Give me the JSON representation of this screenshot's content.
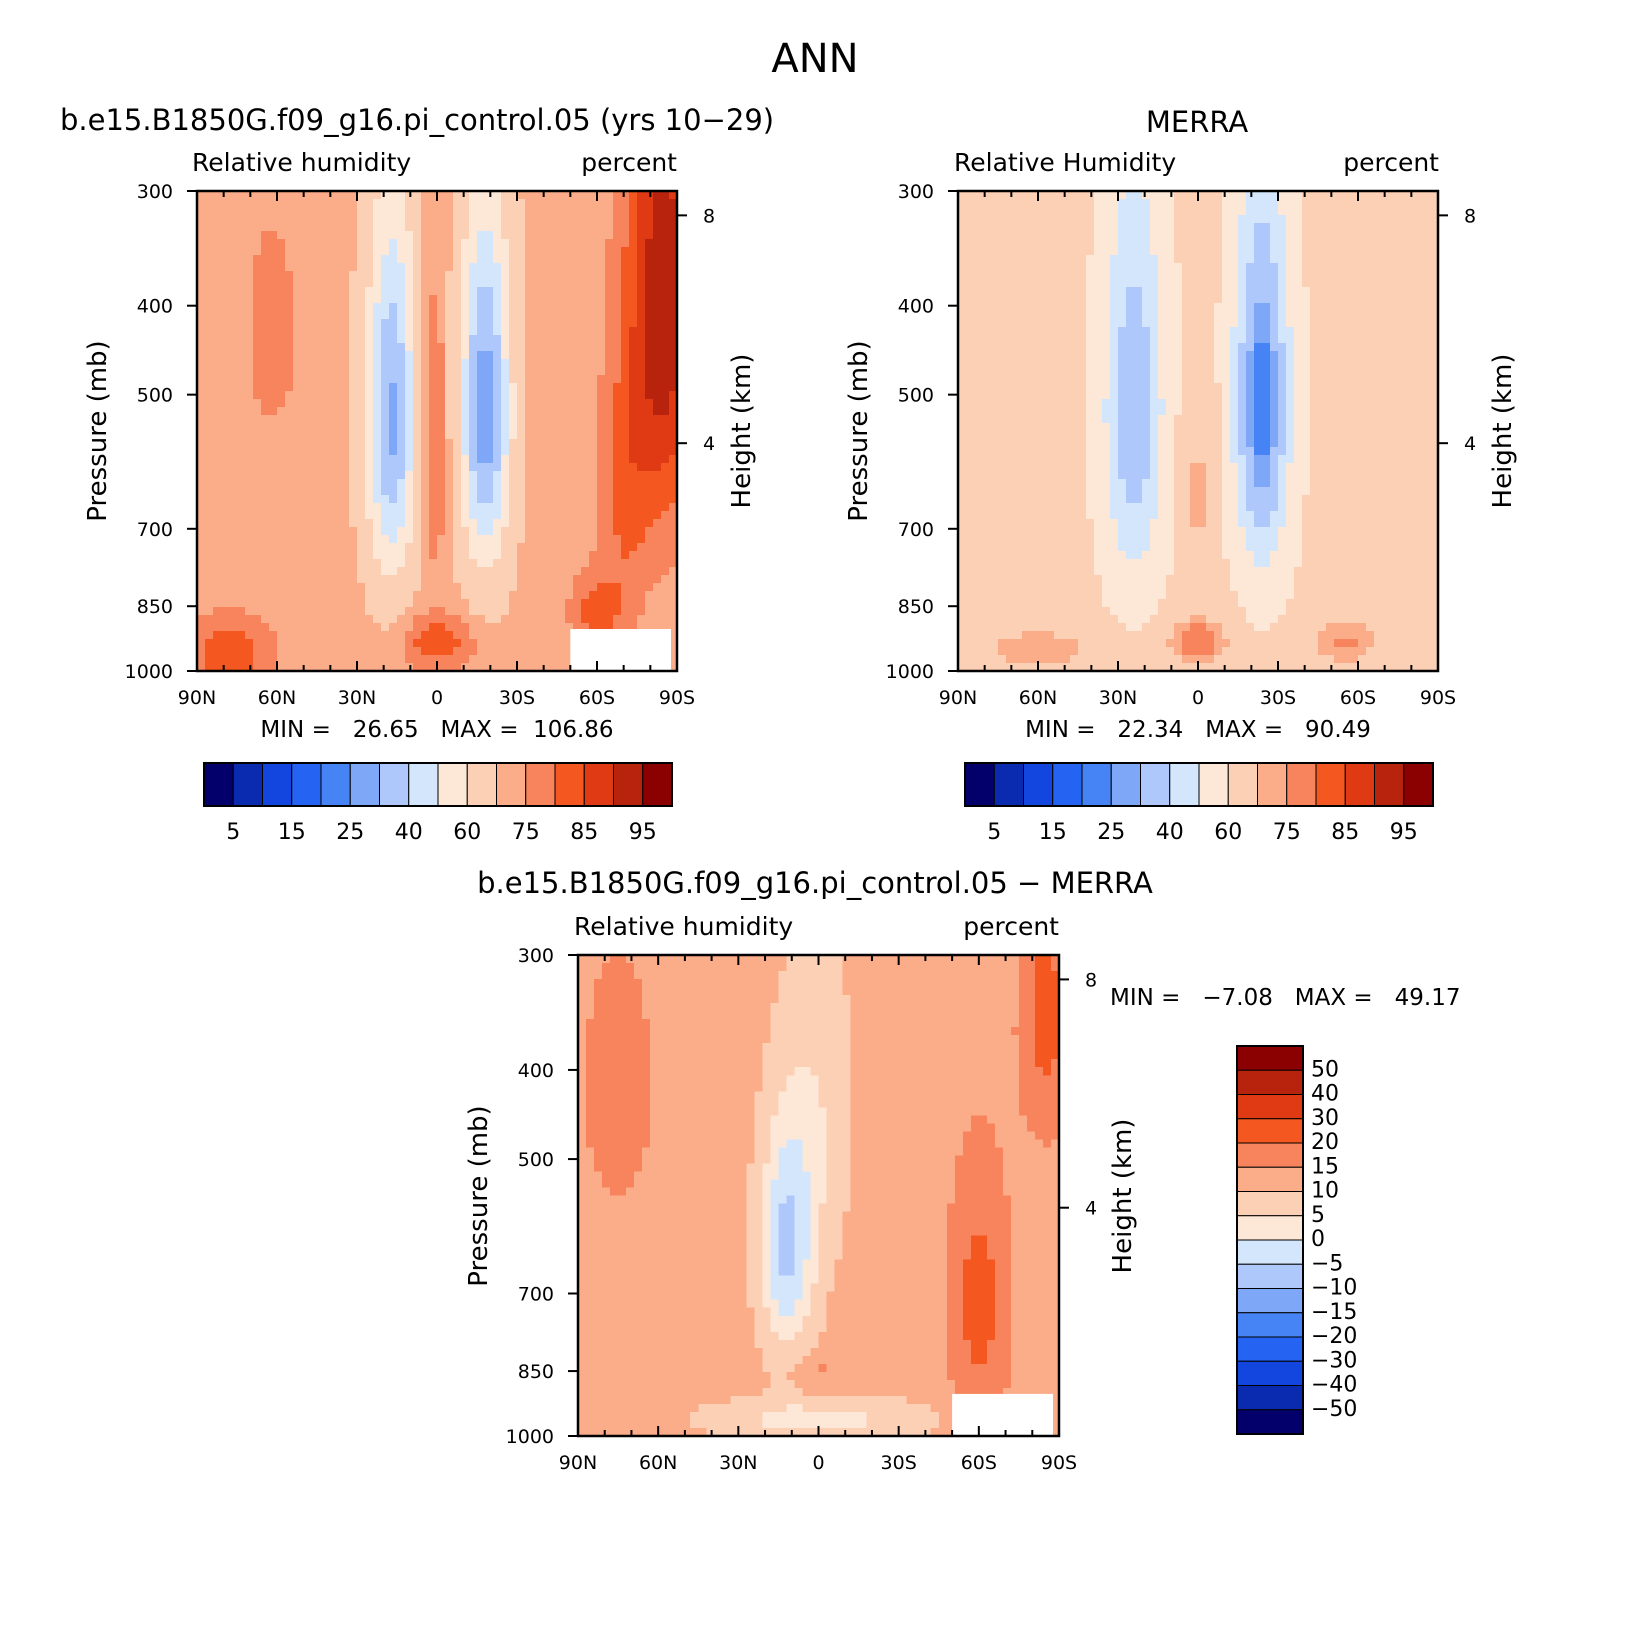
{
  "figure": {
    "title": "ANN"
  },
  "colors": {
    "rh_palette": [
      "#03006c",
      "#0a2bb0",
      "#1346de",
      "#2563f2",
      "#4684f5",
      "#7ea7f7",
      "#afc8fb",
      "#d4e6fb",
      "#fde8d7",
      "#fcd0b4",
      "#fbac88",
      "#f7845c",
      "#f4571f",
      "#df3a14",
      "#b8230d",
      "#8b0000"
    ],
    "diff_palette": [
      "#03006c",
      "#0a2bb0",
      "#1346de",
      "#2563f2",
      "#4684f5",
      "#7ea7f7",
      "#afc8fb",
      "#d4e6fb",
      "#fde8d7",
      "#fcd0b4",
      "#fbac88",
      "#f7845c",
      "#f4571f",
      "#df3a14",
      "#b8230d",
      "#8b0000"
    ]
  },
  "chart_data": [
    {
      "type": "heatmap",
      "id": "model",
      "title": "b.e15.B1850G.f09_g16.pi_control.05 (yrs 10−29)",
      "left_label": "Relative humidity",
      "right_label": "percent",
      "ylabel": "Pressure (mb)",
      "ylabel_right": "Height (km)",
      "x_ticks": [
        "90N",
        "60N",
        "30N",
        "0",
        "30S",
        "60S",
        "90S"
      ],
      "y_ticks": [
        "300",
        "400",
        "500",
        "700",
        "850",
        "1000"
      ],
      "y_ticks_right": [
        "8",
        "4"
      ],
      "stats_text": "MIN =   26.65   MAX =  106.86",
      "min": 26.65,
      "max": 106.86,
      "xlim": [
        90,
        -90
      ],
      "ylim": [
        1000,
        300
      ],
      "ylog": true,
      "colorbar": {
        "orientation": "horizontal",
        "levels": [
          5,
          10,
          15,
          20,
          25,
          30,
          40,
          50,
          60,
          70,
          75,
          80,
          85,
          90,
          95
        ],
        "labels": [
          "5",
          "15",
          "25",
          "40",
          "60",
          "75",
          "85",
          "95"
        ]
      }
    },
    {
      "type": "heatmap",
      "id": "obs",
      "title": "MERRA",
      "left_label": "Relative Humidity",
      "right_label": "percent",
      "ylabel": "Pressure (mb)",
      "ylabel_right": "Height (km)",
      "x_ticks": [
        "90N",
        "60N",
        "30N",
        "0",
        "30S",
        "60S",
        "90S"
      ],
      "y_ticks": [
        "300",
        "400",
        "500",
        "700",
        "850",
        "1000"
      ],
      "y_ticks_right": [
        "8",
        "4"
      ],
      "stats_text": "MIN =   22.34   MAX =   90.49",
      "min": 22.34,
      "max": 90.49,
      "xlim": [
        90,
        -90
      ],
      "ylim": [
        1000,
        300
      ],
      "ylog": true,
      "colorbar": {
        "orientation": "horizontal",
        "levels": [
          5,
          10,
          15,
          20,
          25,
          30,
          40,
          50,
          60,
          70,
          75,
          80,
          85,
          90,
          95
        ],
        "labels": [
          "5",
          "15",
          "25",
          "40",
          "60",
          "75",
          "85",
          "95"
        ]
      }
    },
    {
      "type": "heatmap",
      "id": "diff",
      "title": "b.e15.B1850G.f09_g16.pi_control.05 − MERRA",
      "left_label": "Relative humidity",
      "right_label": "percent",
      "ylabel": "Pressure (mb)",
      "ylabel_right": "Height (km)",
      "x_ticks": [
        "90N",
        "60N",
        "30N",
        "0",
        "30S",
        "60S",
        "90S"
      ],
      "y_ticks": [
        "300",
        "400",
        "500",
        "700",
        "850",
        "1000"
      ],
      "y_ticks_right": [
        "8",
        "4"
      ],
      "stats_text": "MIN =   −7.08   MAX =   49.17",
      "min": -7.08,
      "max": 49.17,
      "xlim": [
        90,
        -90
      ],
      "ylim": [
        1000,
        300
      ],
      "ylog": true,
      "colorbar": {
        "orientation": "vertical",
        "levels": [
          -50,
          -40,
          -30,
          -20,
          -15,
          -10,
          -5,
          0,
          5,
          10,
          15,
          20,
          30,
          40,
          50
        ],
        "labels": [
          "50",
          "40",
          "30",
          "20",
          "15",
          "10",
          "5",
          "0",
          "−5",
          "−10",
          "−15",
          "−20",
          "−30",
          "−40",
          "−50"
        ]
      }
    }
  ]
}
